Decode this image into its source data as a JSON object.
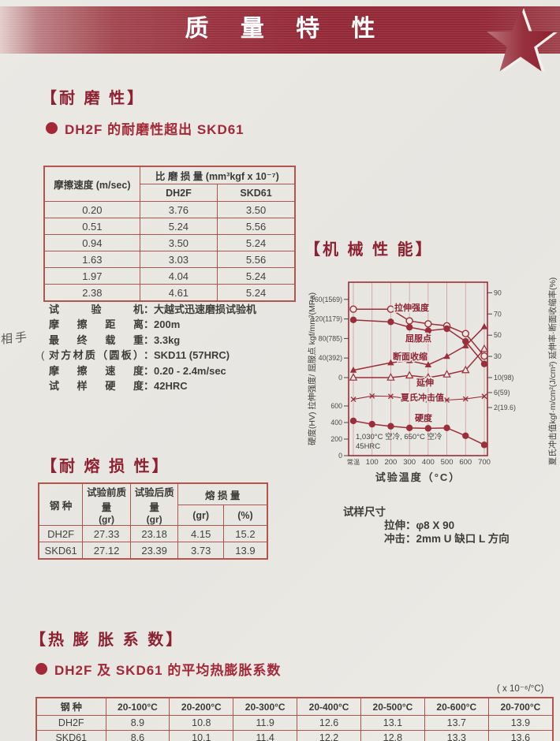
{
  "colors": {
    "banner_red": "#932836",
    "accent_red": "#8e2132",
    "bullet_red": "#a42837",
    "table_border": "#b3554f",
    "chart_line": "#9c2d3a",
    "paper": "#eae8e3"
  },
  "banner": {
    "title": "质 量 特 性"
  },
  "wear_section": {
    "title": "【耐 磨 性】",
    "bullet": "DH2F 的耐磨性超出 SKD61",
    "table": {
      "col1_header": "摩擦速度 (m/sec)",
      "group_header": "比 磨 损 量 (mm³kgf x 10⁻⁷)",
      "sub_headers": [
        "DH2F",
        "SKD61"
      ],
      "rows": [
        [
          "0.20",
          "3.76",
          "3.50"
        ],
        [
          "0.51",
          "5.24",
          "5.56"
        ],
        [
          "0.94",
          "3.50",
          "5.24"
        ],
        [
          "1.63",
          "3.03",
          "5.56"
        ],
        [
          "1.97",
          "4.04",
          "5.24"
        ],
        [
          "2.38",
          "4.61",
          "5.24"
        ]
      ]
    },
    "conditions": [
      {
        "label": "试验机",
        "value": "：大越式迅速磨损试验机"
      },
      {
        "label": "摩擦距离",
        "value": "：200m"
      },
      {
        "label": "最终载重",
        "value": "：3.3kg"
      },
      {
        "label": "对方材质（圆板）",
        "value": "：SKD11 (57HRC)",
        "prefix": "("
      },
      {
        "label": "摩擦速度",
        "value": "：0.20 - 2.4m/sec"
      },
      {
        "label": "试样硬度",
        "value": "：42HRC"
      }
    ]
  },
  "mech_section": {
    "title": "【机 械 性 能】",
    "specimen": {
      "heading": "试样尺寸",
      "lines": [
        "拉伸：φ8 X 90",
        "冲击：2mm U 缺口 L 方向"
      ]
    }
  },
  "chart_data": {
    "type": "line",
    "x_categories": [
      "常温",
      "100",
      "200",
      "300",
      "400",
      "500",
      "600",
      "700"
    ],
    "xlabel": "试验温度（°C）",
    "left_axis_label": "硬度(HV)  拉伸强度/ 屈服点 kgf/mm²(MPa)",
    "right_axis_label": "夏氏冲击值kgf·m/cm²(J/cm²) 延伸率·断面收缩率(%)",
    "left_strength_ticks": [
      {
        "label": "160(1569)",
        "v": 160
      },
      {
        "label": "120(1179)",
        "v": 120
      },
      {
        "label": "80(785)",
        "v": 80
      },
      {
        "label": "40(392)",
        "v": 40
      },
      {
        "label": "0",
        "v": 0
      }
    ],
    "left_hardness_ticks": [
      {
        "label": "600",
        "v": 600
      },
      {
        "label": "400",
        "v": 400
      },
      {
        "label": "200",
        "v": 200
      },
      {
        "label": "0",
        "v": 0
      }
    ],
    "right_percent_ticks": [
      {
        "label": "90",
        "v": 90
      },
      {
        "label": "70",
        "v": 70
      },
      {
        "label": "50",
        "v": 50
      },
      {
        "label": "30",
        "v": 30
      }
    ],
    "right_impact_ticks": [
      {
        "label": "10(98)",
        "v": 10
      },
      {
        "label": "6(59)",
        "v": 6
      },
      {
        "label": "2(19.6)",
        "v": 2
      }
    ],
    "annotation_lines": [
      "1,030°C 空冷, 650°C 空冷",
      "45HRC"
    ],
    "series": [
      {
        "name": "拉伸强度",
        "marker": "open-circle",
        "axis": "strength",
        "x": [
          "常温",
          "200",
          "300",
          "400",
          "500",
          "600",
          "700"
        ],
        "values": [
          140,
          140,
          116,
          110,
          106,
          90,
          44
        ]
      },
      {
        "name": "屈服点",
        "marker": "filled-circle",
        "axis": "strength",
        "x": [
          "常温",
          "200",
          "300",
          "400",
          "500",
          "600",
          "700"
        ],
        "values": [
          118,
          114,
          103,
          96,
          100,
          74,
          28
        ]
      },
      {
        "name": "断面收缩",
        "marker": "filled-triangle",
        "axis": "percent",
        "x": [
          "常温",
          "200",
          "300",
          "400",
          "500",
          "600",
          "700"
        ],
        "values": [
          17,
          24,
          26,
          22,
          30,
          40,
          58
        ]
      },
      {
        "name": "延伸",
        "marker": "open-triangle",
        "axis": "percent",
        "x": [
          "常温",
          "200",
          "300",
          "400",
          "500",
          "600",
          "700"
        ],
        "values": [
          10,
          10,
          12,
          10,
          13,
          17,
          37
        ]
      },
      {
        "name": "夏氏冲击值",
        "marker": "x-mark",
        "axis": "impact",
        "x": [
          "常温",
          "100",
          "200",
          "300",
          "400",
          "500",
          "600",
          "700"
        ],
        "values": [
          4.2,
          5.1,
          5.0,
          4.3,
          4.0,
          4.0,
          4.3,
          5.0
        ]
      },
      {
        "name": "硬度",
        "marker": "filled-circle",
        "axis": "hardness",
        "x": [
          "常温",
          "100",
          "200",
          "300",
          "400",
          "500",
          "600",
          "700"
        ],
        "values": [
          420,
          380,
          355,
          335,
          330,
          335,
          240,
          130
        ]
      }
    ]
  },
  "melt_section": {
    "title": "【耐 熔 损 性】",
    "table": {
      "steel_header": "钢  种",
      "before_header": "试验前质量",
      "before_unit": "(gr)",
      "after_header": "试验后质量",
      "after_unit": "(gr)",
      "loss_header": "熔  损  量",
      "loss_units": [
        "(gr)",
        "(%)"
      ],
      "rows": [
        [
          "DH2F",
          "27.33",
          "23.18",
          "4.15",
          "15.2"
        ],
        [
          "SKD61",
          "27.12",
          "23.39",
          "3.73",
          "13.9"
        ]
      ]
    }
  },
  "expansion_section": {
    "title": "【热 膨 胀 系 数】",
    "bullet": "DH2F 及 SKD61 的平均热膨胀系数",
    "unit_note": "( x 10⁻⁶/°C)",
    "table": {
      "headers": [
        "钢  种",
        "20-100°C",
        "20-200°C",
        "20-300°C",
        "20-400°C",
        "20-500°C",
        "20-600°C",
        "20-700°C"
      ],
      "rows": [
        [
          "DH2F",
          "8.9",
          "10.8",
          "11.9",
          "12.6",
          "13.1",
          "13.7",
          "13.9"
        ],
        [
          "SKD61",
          "8.6",
          "10.1",
          "11.4",
          "12.2",
          "12.8",
          "13.3",
          "13.6"
        ]
      ]
    }
  },
  "margin_note": "相手"
}
